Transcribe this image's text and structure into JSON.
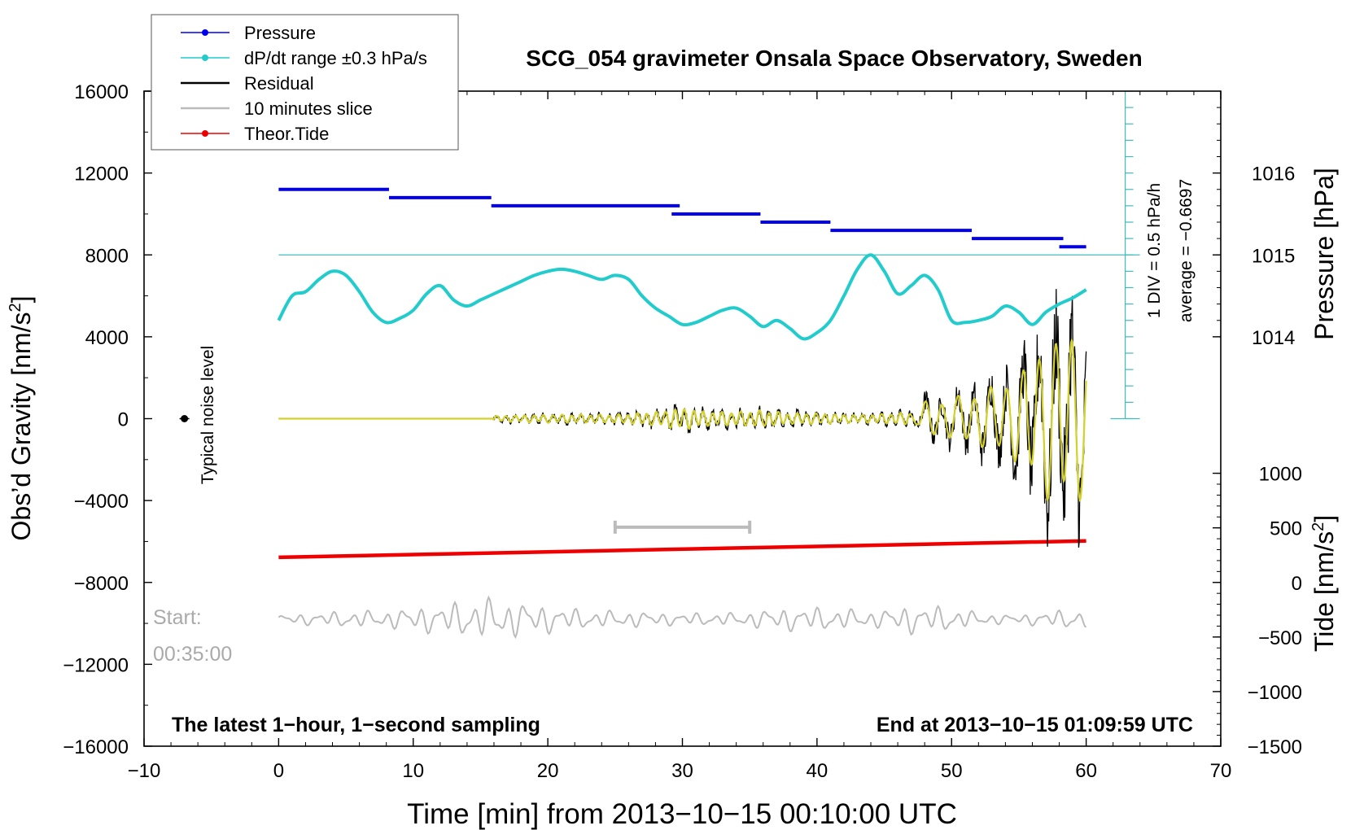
{
  "chart_data": {
    "type": "line",
    "title": "SCG_054 gravimeter Onsala Space Observatory, Sweden",
    "xlabel": "Time [min] from 2013−10−15 00:10:00 UTC",
    "ylabel_left": "Obs’d Gravity [nm/s²]",
    "ylabel_right_pressure": "Pressure [hPa]",
    "ylabel_right_tide": "Tide [nm/s²]",
    "xlim": [
      -10,
      70
    ],
    "ylim": [
      -16000,
      16000
    ],
    "x_ticks": [
      "−10",
      "0",
      "10",
      "20",
      "30",
      "40",
      "50",
      "60",
      "70"
    ],
    "x_tick_values": [
      -10,
      0,
      10,
      20,
      30,
      40,
      50,
      60,
      70
    ],
    "y_ticks": [
      "16000",
      "12000",
      "8000",
      "4000",
      "0",
      "−4000",
      "−8000",
      "−12000",
      "−16000"
    ],
    "y_tick_values": [
      16000,
      12000,
      8000,
      4000,
      0,
      -4000,
      -8000,
      -12000,
      -16000
    ],
    "pressure_ticks": [
      "1016",
      "1015",
      "1014"
    ],
    "pressure_tick_values": [
      1016,
      1015,
      1014
    ],
    "pressure_to_gravity": {
      "offset_hpa": 1015,
      "offset_gravity": 8000,
      "gravity_per_hpa": 4000
    },
    "tide_ticks": [
      "1000",
      "500",
      "0",
      "−500",
      "−1000",
      "−1500"
    ],
    "tide_tick_values": [
      1000,
      500,
      0,
      -500,
      -1000,
      -1500
    ],
    "tide_to_gravity": {
      "offset_tide": 0,
      "offset_gravity": -8000,
      "gravity_per_unit": 5.333
    },
    "legend": {
      "position": "top-left",
      "entries": [
        {
          "label": "Pressure",
          "color": "#0000ee"
        },
        {
          "label": "dP/dt range ±0.3 hPa/s",
          "color": "#22cccc"
        },
        {
          "label": "Residual",
          "color": "#000000"
        },
        {
          "label": "10 minutes slice",
          "color": "#bbbbbb"
        },
        {
          "label": "Theor.Tide",
          "color": "#ee0000"
        }
      ]
    },
    "colors": {
      "pressure": "#0000ee",
      "dpdt": "#22cccc",
      "residual": "#000000",
      "filtered": "#d4d22a",
      "slice": "#bbbbbb",
      "tide": "#ee0000",
      "dpdt_axis": "#44bbbb"
    },
    "pressure_steps": [
      {
        "x0": 0,
        "x1": 8.2,
        "y": 1015.8
      },
      {
        "x0": 8.2,
        "x1": 15.8,
        "y": 1015.7
      },
      {
        "x0": 15.8,
        "x1": 29.8,
        "y": 1015.6
      },
      {
        "x0": 29.2,
        "x1": 35.8,
        "y": 1015.5
      },
      {
        "x0": 35.8,
        "x1": 41.0,
        "y": 1015.4
      },
      {
        "x0": 41.0,
        "x1": 51.5,
        "y": 1015.3
      },
      {
        "x0": 51.5,
        "x1": 58.3,
        "y": 1015.2
      },
      {
        "x0": 58.0,
        "x1": 60.0,
        "y": 1015.1
      }
    ],
    "dpdt_series": {
      "x": [
        0,
        1,
        2,
        3,
        4,
        5,
        6,
        7,
        8,
        9,
        10,
        11,
        12,
        13,
        14,
        15,
        16,
        17,
        18,
        19,
        20,
        21,
        22,
        23,
        24,
        25,
        26,
        27,
        28,
        29,
        30,
        31,
        32,
        33,
        34,
        35,
        36,
        37,
        38,
        39,
        40,
        41,
        42,
        43,
        44,
        45,
        46,
        47,
        48,
        49,
        50,
        51,
        52,
        53,
        54,
        55,
        56,
        57,
        58,
        59,
        60
      ],
      "y": [
        4800,
        6000,
        6200,
        6800,
        7200,
        7000,
        6200,
        5200,
        4700,
        4900,
        5300,
        6100,
        6500,
        5800,
        5500,
        5800,
        6100,
        6400,
        6700,
        7000,
        7200,
        7300,
        7200,
        7000,
        6800,
        7000,
        6800,
        6000,
        5400,
        5000,
        4600,
        4700,
        5000,
        5300,
        5400,
        5000,
        4500,
        4800,
        4400,
        3900,
        4200,
        4800,
        6000,
        7300,
        8000,
        7200,
        6100,
        6500,
        7000,
        6300,
        4800,
        4700,
        4800,
        5000,
        5500,
        5200,
        4600,
        5200,
        5600,
        5900,
        6300
      ]
    },
    "dpdt_axis": {
      "x": 62.9,
      "ymin": 0,
      "ymax": 16000,
      "tick_step": 800,
      "reference_y": 8000,
      "label": "1 DIV = 0.5 hPa/h",
      "average_label": "average = −0.6697"
    },
    "residual_envelope": {
      "x": [
        0,
        15.9,
        16,
        20,
        25,
        28,
        30,
        32,
        34,
        36,
        38,
        40,
        42,
        44,
        46,
        47.5,
        48,
        50,
        52,
        54,
        55,
        56,
        57,
        58,
        59,
        60
      ],
      "amplitude": [
        0,
        0,
        200,
        300,
        300,
        500,
        800,
        500,
        500,
        600,
        400,
        400,
        300,
        300,
        400,
        500,
        1200,
        1500,
        2000,
        2700,
        3200,
        4600,
        5600,
        6200,
        6300,
        5200
      ]
    },
    "filtered_ratio": 0.7,
    "slice_bar": {
      "x0": 25,
      "x1": 35,
      "y": -5300
    },
    "slice_trace": {
      "x0": 0,
      "x1": 60,
      "baseline": -9800,
      "amplitude": [
        200,
        300,
        400,
        400,
        600,
        800,
        1000,
        800,
        600,
        400,
        400,
        300,
        300,
        300,
        500,
        600,
        500,
        400,
        700,
        600,
        300,
        200,
        400,
        500
      ]
    },
    "tide_series": {
      "x": [
        0,
        60
      ],
      "y": [
        230,
        380
      ]
    },
    "noise_marker": {
      "x": -7,
      "y": 0
    },
    "labels": {
      "noise_level": "Typical noise level",
      "start_label": "Start:",
      "start_time": "00:35:00",
      "footer_left": "The latest 1−hour, 1−second sampling",
      "footer_right": "End at 2013−10−15 01:09:59 UTC"
    }
  }
}
